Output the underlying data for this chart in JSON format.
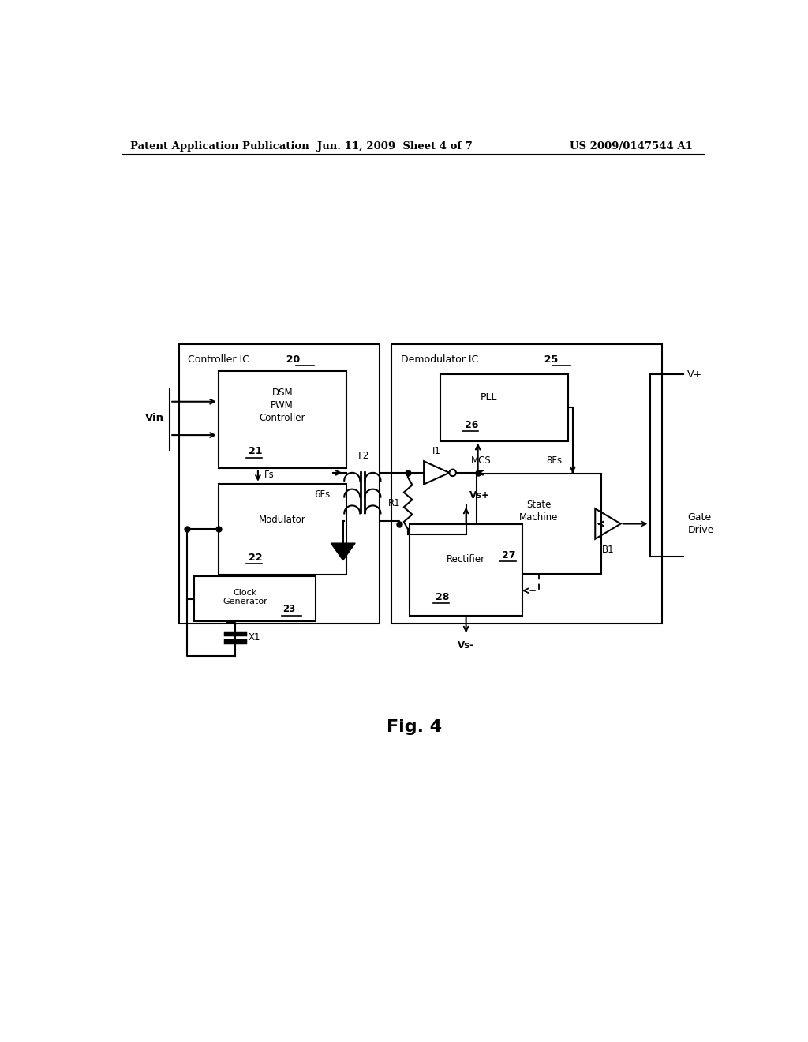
{
  "bg_color": "#ffffff",
  "header_left": "Patent Application Publication",
  "header_mid": "Jun. 11, 2009  Sheet 4 of 7",
  "header_right": "US 2009/0147544 A1",
  "fig_label": "Fig. 4",
  "controller_ic_label": "Controller IC",
  "controller_ic_num": "20",
  "demodulator_ic_label": "Demodulator IC",
  "demodulator_ic_num": "25",
  "dsm_label": "DSM\nPWM\nController",
  "dsm_num": "21",
  "modulator_label": "Modulator",
  "modulator_num": "22",
  "clock_label": "Clock\nGenerator",
  "clock_num": "23",
  "pll_label": "PLL",
  "pll_num": "26",
  "state_machine_label": "State\nMachine",
  "state_machine_num": "27",
  "rectifier_label": "Rectifier",
  "rectifier_num": "28"
}
